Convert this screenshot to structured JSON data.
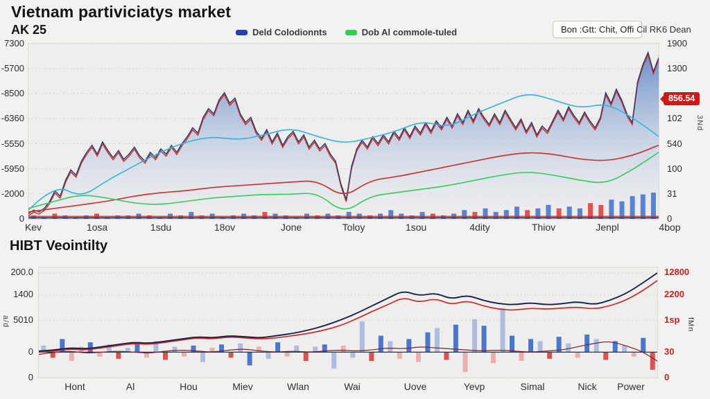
{
  "header": {
    "legend": [
      {
        "label": "Deld Colodionnts",
        "color": "#2540b5"
      },
      {
        "label": "Dob Al commole-tuled",
        "color": "#2fd055"
      }
    ],
    "button_label": "Bon :Gtt: Chit, Offi",
    "link_label": "Cil RK6 Dean"
  },
  "chart_data": [
    {
      "id": "price",
      "type": "area",
      "title": "Vietnam partiviciatys market",
      "subtitle": "AK 25",
      "value_scale": "fraction-of-plot-height",
      "grid": true,
      "legend_position": "top",
      "x_labels": [
        "Kev",
        "1osa",
        "1sdu",
        "18ov",
        "Jone",
        "Toloy",
        "1sou",
        "4dity",
        "Thiov",
        "Jenpl",
        "4bop"
      ],
      "y_left_ticks": [
        "7300",
        "-5700",
        "-8500",
        "-6360",
        "-5550",
        "-5950",
        "-2000",
        "0"
      ],
      "y_right_ticks": [
        "1900",
        "1300",
        "102",
        "540",
        "100",
        "31",
        "0"
      ],
      "price_badge": "856.54",
      "right_axis_note": "3Nd",
      "series": [
        {
          "name": "price",
          "type": "area",
          "color": "#1d3f77",
          "fill_top": "#5a82c4",
          "fill_bottom": "#e4e9f4",
          "values": [
            0.03,
            0.05,
            0.04,
            0.06,
            0.1,
            0.16,
            0.13,
            0.22,
            0.28,
            0.25,
            0.33,
            0.38,
            0.42,
            0.37,
            0.44,
            0.39,
            0.35,
            0.39,
            0.34,
            0.37,
            0.41,
            0.36,
            0.33,
            0.38,
            0.35,
            0.4,
            0.37,
            0.42,
            0.38,
            0.43,
            0.47,
            0.52,
            0.49,
            0.58,
            0.63,
            0.6,
            0.68,
            0.72,
            0.66,
            0.69,
            0.6,
            0.55,
            0.58,
            0.5,
            0.46,
            0.51,
            0.44,
            0.49,
            0.42,
            0.47,
            0.5,
            0.44,
            0.48,
            0.41,
            0.45,
            0.4,
            0.43,
            0.37,
            0.33,
            0.2,
            0.11,
            0.3,
            0.4,
            0.45,
            0.41,
            0.47,
            0.43,
            0.48,
            0.44,
            0.5,
            0.46,
            0.52,
            0.47,
            0.53,
            0.49,
            0.55,
            0.5,
            0.56,
            0.52,
            0.58,
            0.53,
            0.6,
            0.55,
            0.62,
            0.56,
            0.63,
            0.58,
            0.54,
            0.6,
            0.55,
            0.62,
            0.57,
            0.52,
            0.57,
            0.5,
            0.55,
            0.48,
            0.53,
            0.5,
            0.56,
            0.62,
            0.57,
            0.64,
            0.59,
            0.55,
            0.61,
            0.56,
            0.52,
            0.58,
            0.72,
            0.66,
            0.74,
            0.68,
            0.6,
            0.55,
            0.78,
            0.88,
            0.95,
            0.84,
            0.92
          ]
        },
        {
          "name": "close-overlay",
          "type": "line",
          "color": "#d9352b",
          "overlay_of": "price",
          "values": []
        },
        {
          "name": "upper-band",
          "type": "line",
          "color": "#38b6df",
          "values": [
            0.05,
            0.2,
            0.12,
            0.22,
            0.3,
            0.38,
            0.44,
            0.47,
            0.45,
            0.48,
            0.52,
            0.47,
            0.43,
            0.46,
            0.5,
            0.56,
            0.52,
            0.6,
            0.66,
            0.72,
            0.68,
            0.63,
            0.66,
            0.58,
            0.47
          ]
        },
        {
          "name": "moving-average",
          "type": "line",
          "color": "#cc3333",
          "values": [
            0.04,
            0.06,
            0.08,
            0.1,
            0.13,
            0.15,
            0.16,
            0.18,
            0.19,
            0.2,
            0.21,
            0.22,
            0.12,
            0.22,
            0.24,
            0.27,
            0.3,
            0.33,
            0.36,
            0.38,
            0.37,
            0.34,
            0.33,
            0.36,
            0.42
          ]
        },
        {
          "name": "lower-band",
          "type": "line",
          "color": "#3ecb63",
          "values": [
            0.06,
            0.1,
            0.14,
            0.12,
            0.09,
            0.08,
            0.1,
            0.12,
            0.13,
            0.14,
            0.14,
            0.15,
            0.03,
            0.13,
            0.15,
            0.17,
            0.19,
            0.22,
            0.25,
            0.27,
            0.25,
            0.22,
            0.2,
            0.28,
            0.38
          ]
        }
      ],
      "volume": {
        "palette": {
          "b": "#4a77cc",
          "r": "#dd4444"
        },
        "heights": [
          0.02,
          0.01,
          0.03,
          0.02,
          0.01,
          0.02,
          0.03,
          0.01,
          0.02,
          0.02,
          0.03,
          0.02,
          0.01,
          0.03,
          0.02,
          0.04,
          0.02,
          0.03,
          0.01,
          0.02,
          0.03,
          0.02,
          0.04,
          0.03,
          0.02,
          0.01,
          0.03,
          0.02,
          0.03,
          0.02,
          0.04,
          0.03,
          0.02,
          0.03,
          0.05,
          0.03,
          0.02,
          0.04,
          0.03,
          0.02,
          0.03,
          0.05,
          0.04,
          0.06,
          0.04,
          0.05,
          0.07,
          0.05,
          0.06,
          0.08,
          0.06,
          0.07,
          0.06,
          0.09,
          0.08,
          0.11,
          0.1,
          0.13,
          0.14,
          0.15
        ],
        "colors": [
          "b",
          "b",
          "r",
          "b",
          "b",
          "b",
          "r",
          "b",
          "b",
          "b",
          "b",
          "r",
          "b",
          "b",
          "b",
          "b",
          "r",
          "b",
          "b",
          "b",
          "b",
          "b",
          "r",
          "b",
          "b",
          "b",
          "b",
          "r",
          "b",
          "b",
          "b",
          "b",
          "r",
          "b",
          "b",
          "b",
          "b",
          "b",
          "r",
          "b",
          "b",
          "b",
          "r",
          "b",
          "b",
          "b",
          "b",
          "r",
          "b",
          "b",
          "r",
          "b",
          "b",
          "r",
          "r",
          "b",
          "b",
          "b",
          "b",
          "b"
        ]
      }
    },
    {
      "id": "volatility",
      "type": "line+bar",
      "title": "HIBT Veointilty",
      "value_scale": "fraction-of-plot-height",
      "baseline": 0.23,
      "x_labels": [
        "Hont",
        "Al",
        "Hou",
        "Miev",
        "Wlan",
        "Wai",
        "Uove",
        "Yevp",
        "Simal",
        "Nick",
        "Power"
      ],
      "y_left_ticks": [
        "200.0",
        "1400",
        "5010",
        "0",
        "0"
      ],
      "y_right_ticks": [
        "12800",
        "2200",
        "1sp",
        "30",
        "0"
      ],
      "left_axis_note": "a/d",
      "right_axis_note": "fMn",
      "series": [
        {
          "name": "volatility-dark",
          "type": "line",
          "color": "#152248",
          "values": [
            0.24,
            0.25,
            0.27,
            0.26,
            0.28,
            0.3,
            0.32,
            0.31,
            0.33,
            0.35,
            0.37,
            0.36,
            0.38,
            0.37,
            0.36,
            0.38,
            0.4,
            0.43,
            0.47,
            0.52,
            0.58,
            0.65,
            0.72,
            0.79,
            0.74,
            0.77,
            0.71,
            0.75,
            0.7,
            0.67,
            0.66,
            0.68,
            0.66,
            0.67,
            0.69,
            0.66,
            0.7,
            0.76,
            0.85,
            0.95
          ]
        },
        {
          "name": "volatility-red",
          "type": "line",
          "color": "#cc2a2a",
          "values": [
            0.23,
            0.24,
            0.26,
            0.25,
            0.27,
            0.29,
            0.31,
            0.3,
            0.32,
            0.34,
            0.36,
            0.35,
            0.37,
            0.36,
            0.35,
            0.36,
            0.38,
            0.4,
            0.43,
            0.47,
            0.53,
            0.6,
            0.66,
            0.73,
            0.68,
            0.72,
            0.66,
            0.7,
            0.65,
            0.62,
            0.61,
            0.63,
            0.62,
            0.63,
            0.64,
            0.62,
            0.65,
            0.7,
            0.78,
            0.88
          ]
        },
        {
          "name": "signal",
          "type": "line",
          "color": "#7a1f2b",
          "values": [
            0.21,
            0.23,
            0.24,
            0.22,
            0.23,
            0.24,
            0.23,
            0.22,
            0.24,
            0.25,
            0.24,
            0.23,
            0.25,
            0.26,
            0.24,
            0.23,
            0.24,
            0.23,
            0.24,
            0.25,
            0.24,
            0.25,
            0.27,
            0.26,
            0.28,
            0.27,
            0.26,
            0.25,
            0.24,
            0.25,
            0.24,
            0.23,
            0.24,
            0.25,
            0.28,
            0.31,
            0.33,
            0.29,
            0.24,
            0.15
          ]
        }
      ],
      "bars": {
        "palette": {
          "B": "#4a77cc",
          "b": "rgba(106,140,210,0.5)",
          "R": "#dd5050",
          "r": "rgba(225,100,100,0.45)"
        },
        "values": [
          0.06,
          -0.05,
          0.12,
          -0.08,
          0.05,
          0.09,
          -0.04,
          0.07,
          -0.06,
          0.04,
          0.08,
          -0.05,
          0.1,
          -0.07,
          0.05,
          -0.04,
          0.06,
          -0.09,
          0.04,
          0.07,
          -0.05,
          0.08,
          -0.12,
          0.05,
          -0.06,
          0.09,
          -0.04,
          0.06,
          -0.08,
          0.05,
          0.07,
          -0.15,
          0.06,
          -0.05,
          0.28,
          -0.08,
          0.15,
          0.1,
          -0.06,
          0.12,
          -0.09,
          0.18,
          0.22,
          -0.07,
          0.25,
          -0.18,
          0.3,
          0.24,
          -0.1,
          0.4,
          0.15,
          -0.08,
          0.12,
          0.1,
          -0.06,
          0.14,
          0.08,
          -0.05,
          0.16,
          0.12,
          -0.07,
          0.1,
          0.06,
          -0.04,
          0.13,
          -0.16
        ],
        "colors": [
          "b",
          "R",
          "B",
          "r",
          "b",
          "B",
          "r",
          "b",
          "R",
          "b",
          "B",
          "r",
          "b",
          "R",
          "b",
          "r",
          "B",
          "b",
          "r",
          "B",
          "R",
          "b",
          "B",
          "r",
          "b",
          "B",
          "r",
          "b",
          "R",
          "b",
          "B",
          "b",
          "r",
          "b",
          "b",
          "R",
          "B",
          "b",
          "r",
          "B",
          "r",
          "B",
          "b",
          "R",
          "B",
          "r",
          "b",
          "B",
          "r",
          "b",
          "B",
          "r",
          "B",
          "b",
          "R",
          "B",
          "b",
          "r",
          "B",
          "b",
          "R",
          "B",
          "b",
          "r",
          "B",
          "R"
        ]
      }
    }
  ]
}
